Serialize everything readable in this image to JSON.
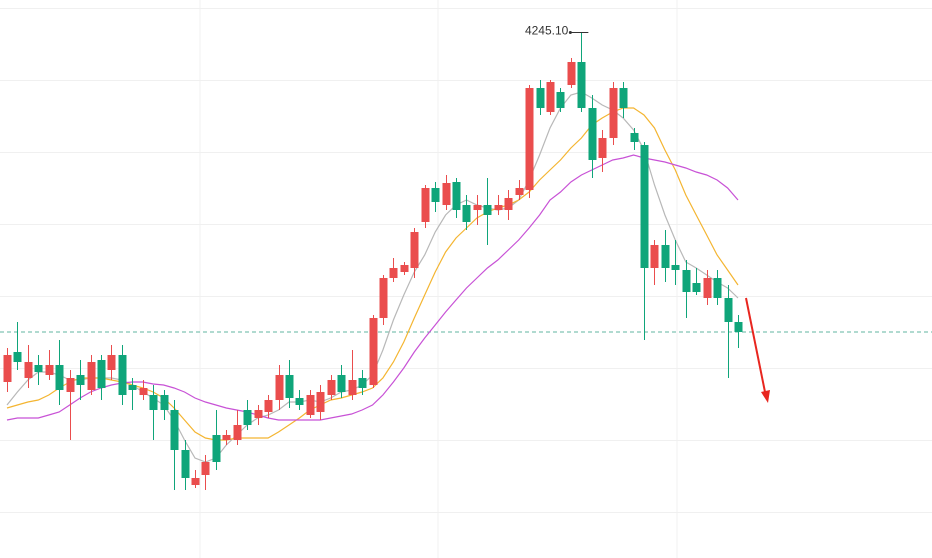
{
  "chart_data": {
    "type": "candlestick",
    "open": [
      3546,
      3606,
      3554,
      3580,
      3560,
      3580,
      3526,
      3560,
      3530,
      3590,
      3570,
      3600,
      3540,
      3520,
      3520,
      3520,
      3490,
      3410,
      3340,
      3360,
      3440,
      3430,
      3430,
      3490,
      3474,
      3486,
      3510,
      3560,
      3514,
      3480,
      3486,
      3520,
      3560,
      3520,
      3554,
      3540,
      3674,
      3754,
      3766,
      3774,
      3866,
      3934,
      3900,
      3946,
      3900,
      3890,
      3900,
      3890,
      3890,
      3920,
      3930,
      4134,
      4086,
      4126,
      4140,
      4186,
      4094,
      3994,
      4034,
      4134,
      4044,
      4020,
      3774,
      3820,
      3780,
      3770,
      3744,
      3714,
      3754,
      3714,
      3666
    ],
    "high": [
      3614,
      3666,
      3620,
      3600,
      3610,
      3630,
      3570,
      3590,
      3600,
      3600,
      3620,
      3620,
      3554,
      3550,
      3540,
      3530,
      3510,
      3430,
      3370,
      3400,
      3490,
      3450,
      3490,
      3510,
      3500,
      3520,
      3580,
      3590,
      3530,
      3530,
      3540,
      3560,
      3580,
      3610,
      3570,
      3680,
      3760,
      3794,
      3786,
      3854,
      3940,
      3946,
      3960,
      3954,
      3920,
      3920,
      3954,
      3920,
      3930,
      3950,
      4140,
      4150,
      4150,
      4134,
      4194,
      4245.1,
      4120,
      4050,
      4146,
      4146,
      4054,
      4026,
      3830,
      3850,
      3830,
      3790,
      3774,
      3770,
      3770,
      3740,
      3680
    ],
    "low": [
      3526,
      3570,
      3534,
      3540,
      3550,
      3500,
      3430,
      3510,
      3520,
      3510,
      3550,
      3500,
      3490,
      3510,
      3430,
      3470,
      3330,
      3330,
      3334,
      3330,
      3370,
      3420,
      3420,
      3450,
      3460,
      3474,
      3490,
      3494,
      3490,
      3474,
      3470,
      3510,
      3514,
      3510,
      3520,
      3534,
      3660,
      3746,
      3760,
      3754,
      3854,
      3886,
      3890,
      3874,
      3850,
      3860,
      3820,
      3880,
      3870,
      3910,
      3914,
      4080,
      4080,
      4086,
      4134,
      4086,
      3954,
      3966,
      4020,
      4074,
      4010,
      3630,
      3740,
      3746,
      3740,
      3674,
      3720,
      3700,
      3700,
      3554,
      3614
    ],
    "close": [
      3600,
      3586,
      3586,
      3566,
      3580,
      3530,
      3554,
      3540,
      3586,
      3534,
      3600,
      3520,
      3530,
      3534,
      3490,
      3490,
      3410,
      3354,
      3354,
      3386,
      3386,
      3440,
      3460,
      3460,
      3490,
      3510,
      3560,
      3514,
      3500,
      3520,
      3526,
      3550,
      3526,
      3550,
      3534,
      3674,
      3754,
      3774,
      3780,
      3846,
      3934,
      3906,
      3944,
      3890,
      3866,
      3900,
      3880,
      3900,
      3914,
      3934,
      4134,
      4094,
      4146,
      4094,
      4186,
      4094,
      3990,
      4034,
      4134,
      4094,
      4026,
      3774,
      3820,
      3774,
      3770,
      3726,
      3726,
      3754,
      3714,
      3666,
      3646
    ],
    "up_color": "#ea4d4d",
    "down_color": "#0fa57a",
    "lines": [
      {
        "color": "#b8b8b8",
        "values": [
          3500,
          3526,
          3550,
          3566,
          3566,
          3560,
          3550,
          3550,
          3554,
          3554,
          3554,
          3550,
          3540,
          3526,
          3514,
          3500,
          3470,
          3430,
          3394,
          3386,
          3394,
          3420,
          3440,
          3460,
          3474,
          3480,
          3490,
          3506,
          3506,
          3510,
          3506,
          3514,
          3526,
          3530,
          3540,
          3560,
          3610,
          3670,
          3720,
          3766,
          3800,
          3846,
          3880,
          3900,
          3910,
          3900,
          3894,
          3890,
          3894,
          3910,
          3950,
          4000,
          4054,
          4094,
          4120,
          4126,
          4114,
          4100,
          4090,
          4074,
          4050,
          4010,
          3940,
          3880,
          3830,
          3786,
          3774,
          3760,
          3746,
          3734,
          3714
        ]
      },
      {
        "color": "#f4b531",
        "values": [
          3494,
          3500,
          3506,
          3510,
          3520,
          3534,
          3546,
          3554,
          3554,
          3554,
          3550,
          3546,
          3540,
          3534,
          3526,
          3514,
          3494,
          3470,
          3446,
          3434,
          3430,
          3430,
          3434,
          3434,
          3434,
          3434,
          3446,
          3460,
          3474,
          3490,
          3500,
          3510,
          3514,
          3520,
          3526,
          3534,
          3554,
          3586,
          3626,
          3674,
          3720,
          3766,
          3806,
          3834,
          3854,
          3874,
          3886,
          3894,
          3900,
          3910,
          3926,
          3950,
          3970,
          3990,
          4014,
          4034,
          4060,
          4074,
          4086,
          4094,
          4094,
          4080,
          4054,
          4010,
          3970,
          3920,
          3880,
          3840,
          3800,
          3770,
          3740
        ]
      },
      {
        "color": "#c852d6",
        "values": [
          3470,
          3474,
          3474,
          3474,
          3480,
          3486,
          3500,
          3514,
          3526,
          3534,
          3540,
          3544,
          3546,
          3546,
          3542,
          3540,
          3534,
          3526,
          3514,
          3506,
          3500,
          3494,
          3490,
          3486,
          3480,
          3474,
          3470,
          3470,
          3470,
          3470,
          3470,
          3474,
          3478,
          3482,
          3490,
          3500,
          3520,
          3546,
          3574,
          3606,
          3634,
          3660,
          3686,
          3710,
          3734,
          3754,
          3774,
          3790,
          3810,
          3830,
          3854,
          3880,
          3910,
          3926,
          3946,
          3960,
          3970,
          3980,
          3990,
          3994,
          4000,
          3994,
          3990,
          3986,
          3980,
          3974,
          3966,
          3960,
          3950,
          3934,
          3910
        ]
      }
    ],
    "ylim": [
      3194,
      4310
    ],
    "ygrid": [
      4294,
      4150,
      4006,
      3862,
      3718,
      3574,
      3430,
      3286
    ],
    "grid": true,
    "reference_line": {
      "value": 3646,
      "color": "#3aa58a"
    },
    "annotation": {
      "index": 55,
      "value": 4245.1,
      "label": "4245.10"
    }
  }
}
